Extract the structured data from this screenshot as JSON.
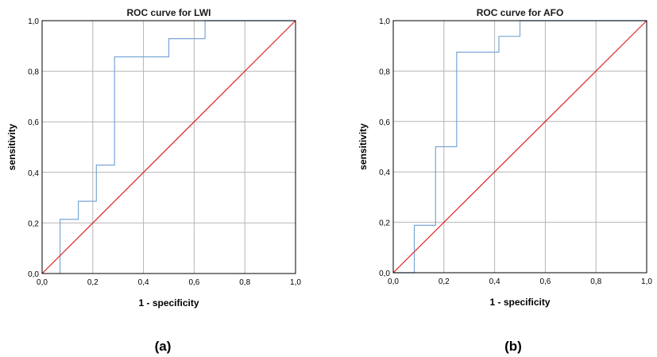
{
  "chart_data": [
    {
      "type": "line",
      "title": "ROC curve for LWI",
      "xlabel": "1 - specificity",
      "ylabel": "sensitivity",
      "xlim": [
        0,
        1
      ],
      "ylim": [
        0,
        1
      ],
      "x_ticks": [
        "0,0",
        "0,2",
        "0,4",
        "0,6",
        "0,8",
        "1,0"
      ],
      "y_ticks": [
        "0,0",
        "0,2",
        "0,4",
        "0,6",
        "0,8",
        "1,0"
      ],
      "grid": true,
      "caption": "(a)",
      "series": [
        {
          "color": "#7aa6d6",
          "points": [
            [
              0.071,
              0
            ],
            [
              0.071,
              0.214
            ],
            [
              0.143,
              0.214
            ],
            [
              0.143,
              0.286
            ],
            [
              0.214,
              0.286
            ],
            [
              0.214,
              0.429
            ],
            [
              0.286,
              0.429
            ],
            [
              0.286,
              0.857
            ],
            [
              0.5,
              0.857
            ],
            [
              0.5,
              0.929
            ],
            [
              0.643,
              0.929
            ],
            [
              0.643,
              1
            ],
            [
              1,
              1
            ]
          ]
        },
        {
          "color": "#e02020",
          "points": [
            [
              0,
              0
            ],
            [
              1,
              1
            ]
          ]
        }
      ]
    },
    {
      "type": "line",
      "title": "ROC curve for AFO",
      "xlabel": "1 - specificity",
      "ylabel": "sensitivity",
      "xlim": [
        0,
        1
      ],
      "ylim": [
        0,
        1
      ],
      "x_ticks": [
        "0,0",
        "0,2",
        "0,4",
        "0,6",
        "0,8",
        "1,0"
      ],
      "y_ticks": [
        "0,0",
        "0,2",
        "0,4",
        "0,6",
        "0,8",
        "1,0"
      ],
      "grid": true,
      "caption": "(b)",
      "series": [
        {
          "color": "#7aa6d6",
          "points": [
            [
              0,
              0
            ],
            [
              0.083,
              0
            ],
            [
              0.083,
              0.188
            ],
            [
              0.167,
              0.188
            ],
            [
              0.167,
              0.5
            ],
            [
              0.25,
              0.5
            ],
            [
              0.25,
              0.875
            ],
            [
              0.417,
              0.875
            ],
            [
              0.417,
              0.938
            ],
            [
              0.5,
              0.938
            ],
            [
              0.5,
              1
            ],
            [
              1,
              1
            ]
          ]
        },
        {
          "color": "#e02020",
          "points": [
            [
              0,
              0
            ],
            [
              1,
              1
            ]
          ]
        }
      ]
    }
  ]
}
